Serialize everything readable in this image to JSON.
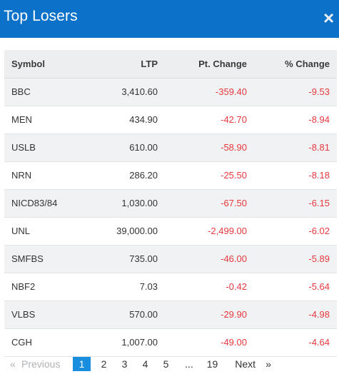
{
  "header": {
    "title": "Top Losers",
    "close_glyph": "×"
  },
  "table": {
    "columns": [
      "Symbol",
      "LTP",
      "Pt. Change",
      "% Change"
    ],
    "rows": [
      [
        "BBC",
        "3,410.60",
        "-359.40",
        "-9.53"
      ],
      [
        "MEN",
        "434.90",
        "-42.70",
        "-8.94"
      ],
      [
        "USLB",
        "610.00",
        "-58.90",
        "-8.81"
      ],
      [
        "NRN",
        "286.20",
        "-25.50",
        "-8.18"
      ],
      [
        "NICD83/84",
        "1,030.00",
        "-67.50",
        "-6.15"
      ],
      [
        "UNL",
        "39,000.00",
        "-2,499.00",
        "-6.02"
      ],
      [
        "SMFBS",
        "735.00",
        "-46.00",
        "-5.89"
      ],
      [
        "NBF2",
        "7.03",
        "-0.42",
        "-5.64"
      ],
      [
        "VLBS",
        "570.00",
        "-29.90",
        "-4.98"
      ],
      [
        "CGH",
        "1,007.00",
        "-49.00",
        "-4.64"
      ]
    ]
  },
  "pagination": {
    "prev_arrow": "«",
    "prev_label": "Previous",
    "pages": [
      "1",
      "2",
      "3",
      "4",
      "5"
    ],
    "active_page": "1",
    "ellipsis": "...",
    "last_page": "19",
    "next_label": "Next",
    "next_arrow": "»"
  },
  "colors": {
    "header_bg": "#0c71c8",
    "negative": "#e8383d",
    "active_page_bg": "#1a8ede"
  }
}
